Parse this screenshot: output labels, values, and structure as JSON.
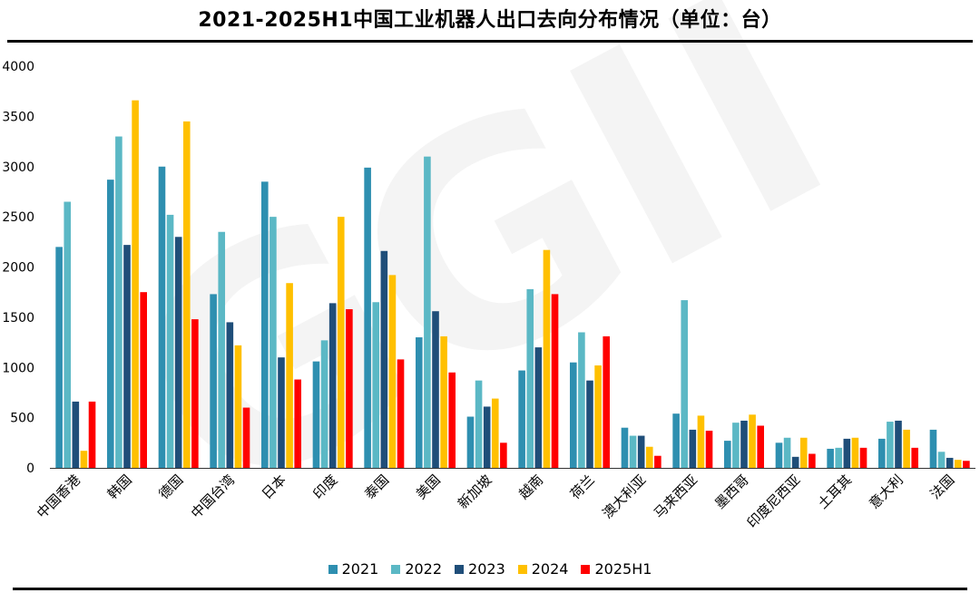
{
  "chart_data": {
    "type": "bar",
    "title": "2021-2025H1中国工业机器人出口去向分布情况（单位：台）",
    "xlabel": "",
    "ylabel": "",
    "ylim": [
      0,
      4000
    ],
    "yticks": [
      0,
      500,
      1000,
      1500,
      2000,
      2500,
      3000,
      3500,
      4000
    ],
    "grid": false,
    "legend_position": "bottom",
    "categories": [
      "中国香港",
      "韩国",
      "德国",
      "中国台湾",
      "日本",
      "印度",
      "泰国",
      "美国",
      "新加坡",
      "越南",
      "荷兰",
      "澳大利亚",
      "马来西亚",
      "墨西哥",
      "印度尼西亚",
      "土耳其",
      "意大利",
      "法国"
    ],
    "series": [
      {
        "name": "2021",
        "color": "#2E8FB0",
        "values": [
          2200,
          2870,
          3000,
          1730,
          2850,
          1060,
          2990,
          1300,
          510,
          970,
          1050,
          400,
          540,
          270,
          250,
          190,
          290,
          380
        ]
      },
      {
        "name": "2022",
        "color": "#5BB8C5",
        "values": [
          2650,
          3300,
          2520,
          2350,
          2500,
          1270,
          1650,
          3100,
          870,
          1780,
          1350,
          320,
          1670,
          450,
          300,
          200,
          460,
          160
        ]
      },
      {
        "name": "2023",
        "color": "#1F4E79",
        "values": [
          660,
          2220,
          2300,
          1450,
          1100,
          1640,
          2160,
          1560,
          610,
          1200,
          870,
          320,
          380,
          470,
          110,
          290,
          470,
          100
        ]
      },
      {
        "name": "2024",
        "color": "#FFC000",
        "values": [
          170,
          3660,
          3450,
          1220,
          1840,
          2500,
          1920,
          1310,
          690,
          2170,
          1020,
          210,
          520,
          530,
          300,
          300,
          380,
          80
        ]
      },
      {
        "name": "2025H1",
        "color": "#FF0000",
        "values": [
          660,
          1750,
          1480,
          600,
          880,
          1580,
          1080,
          950,
          250,
          1730,
          1310,
          120,
          370,
          420,
          140,
          200,
          200,
          70
        ]
      }
    ]
  },
  "watermark": "GGII"
}
